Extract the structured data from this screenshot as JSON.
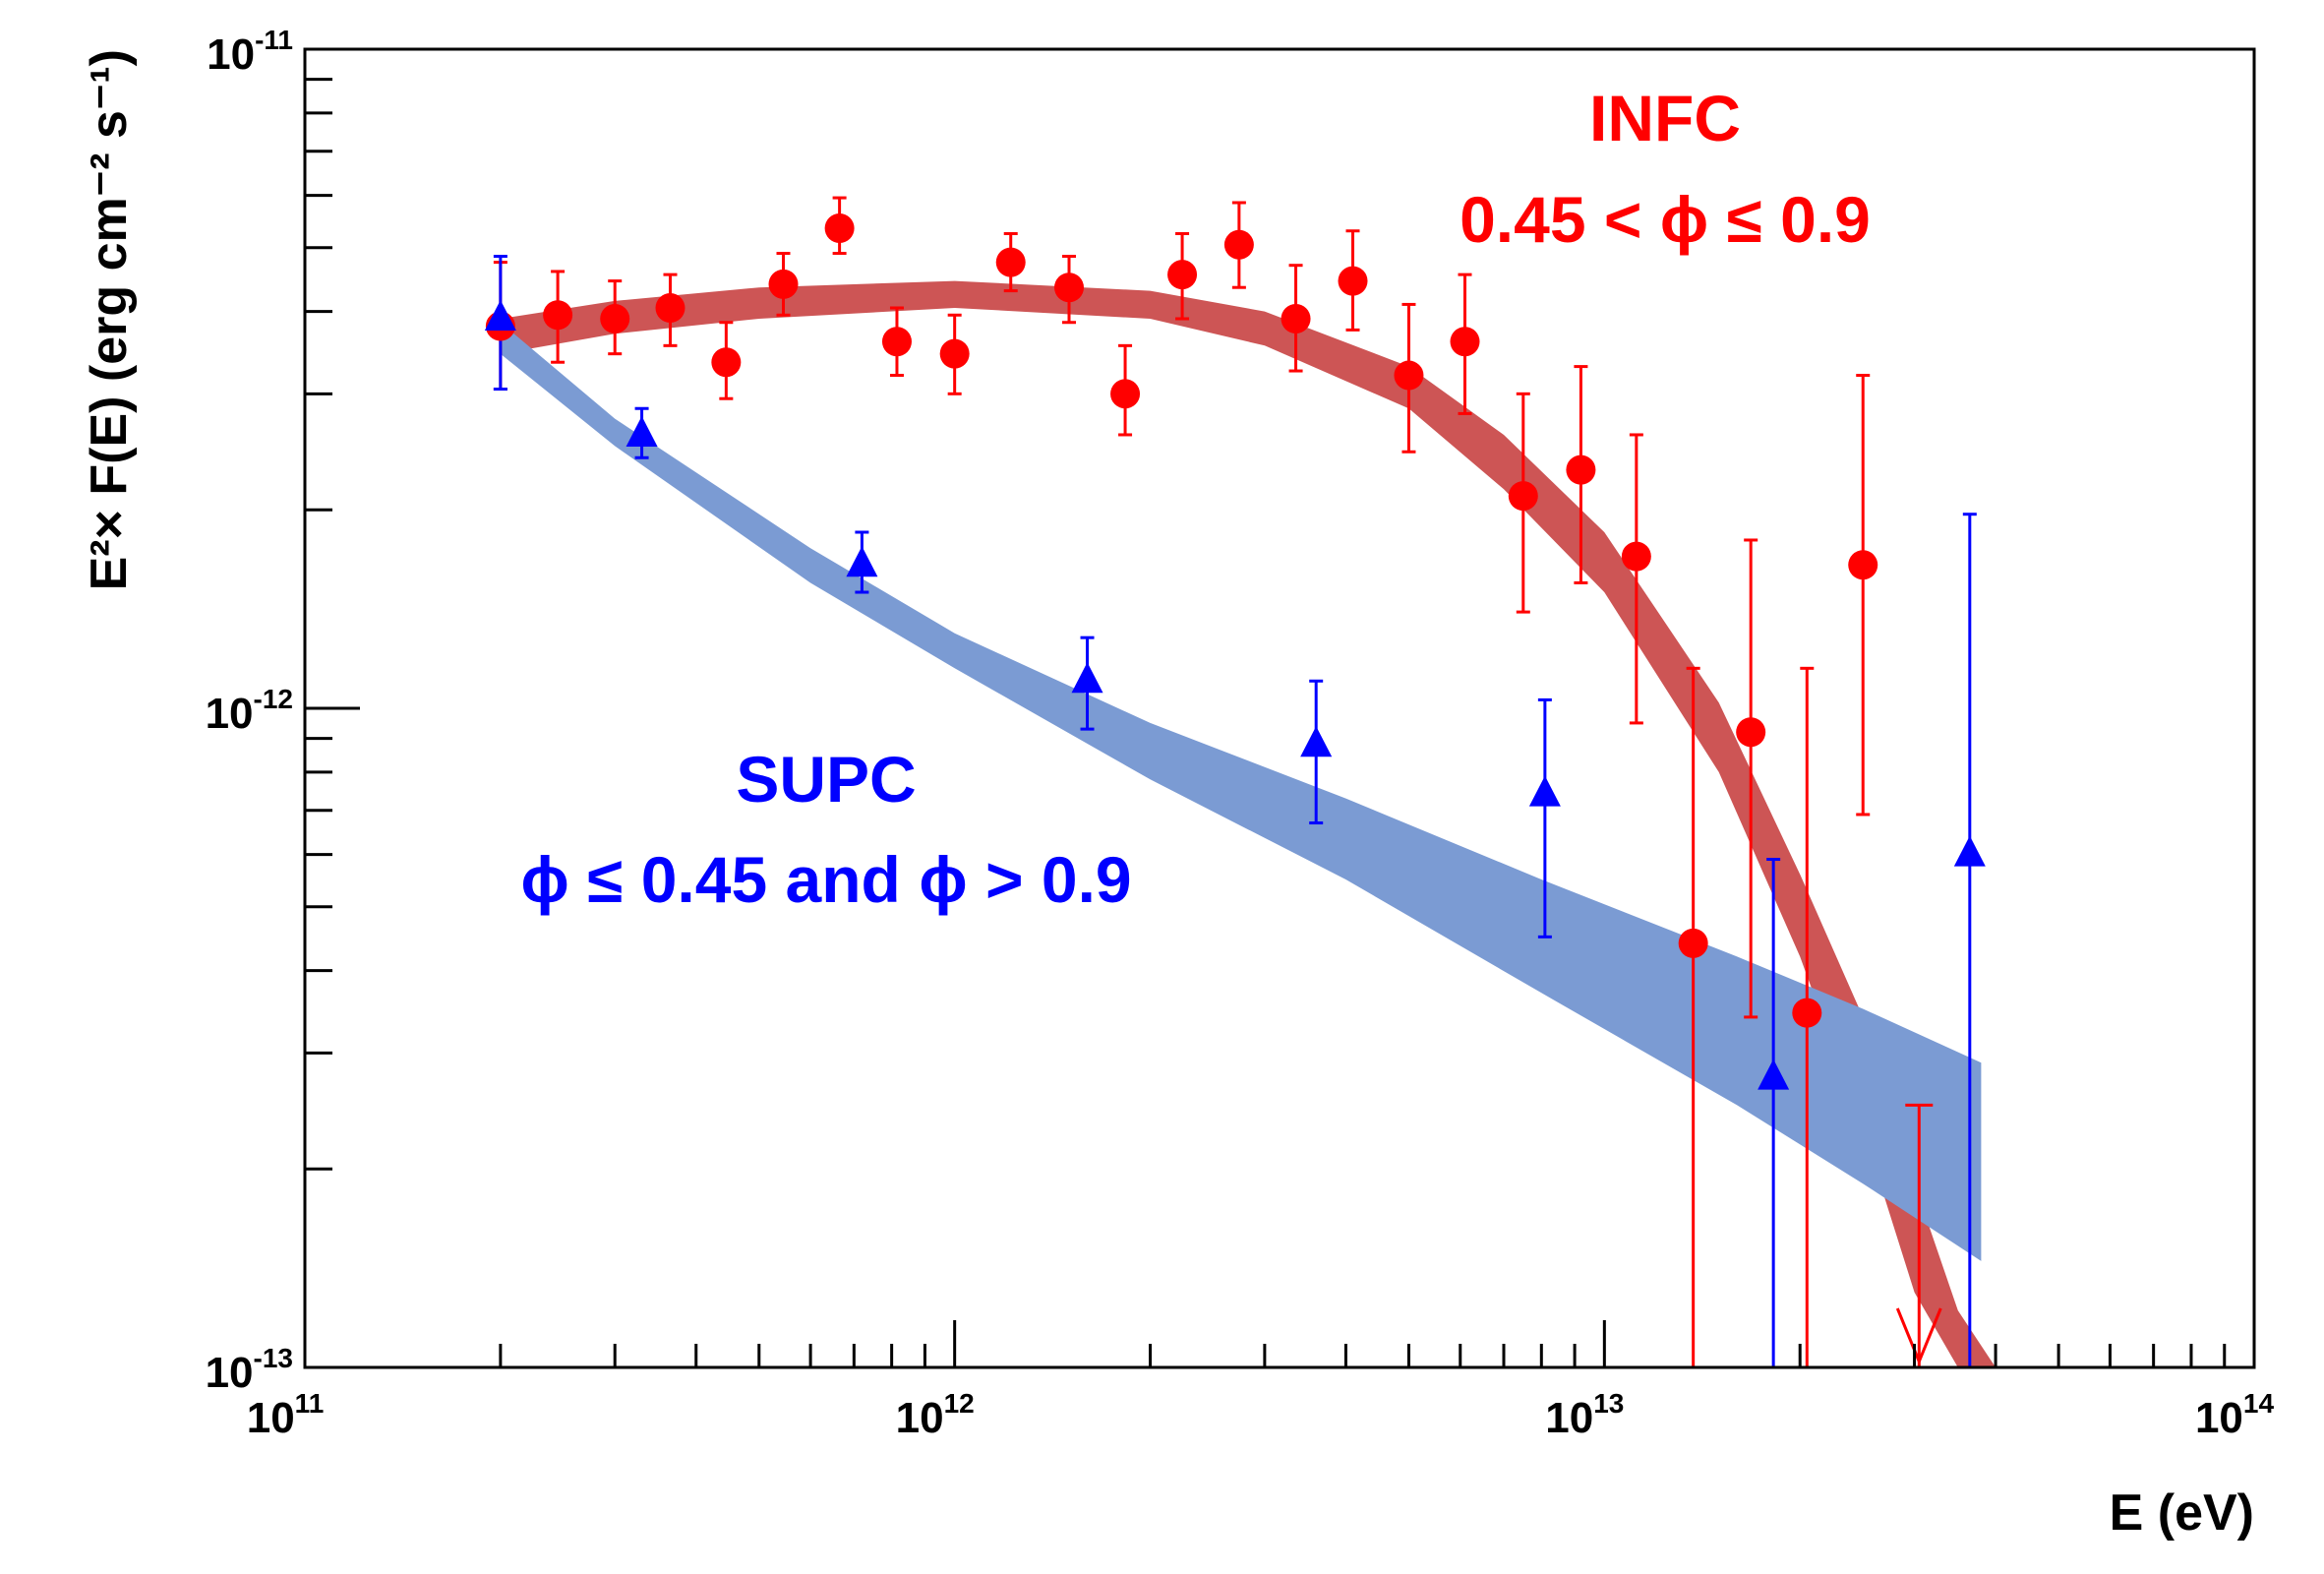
{
  "chart_data": {
    "type": "scatter",
    "title": "",
    "xlabel": "E (eV)",
    "ylabel": "E²× F(E) (erg cm⁻² s⁻¹)",
    "x_scale": "log",
    "y_scale": "log",
    "xlim": [
      100000000000.0,
      100000000000000.0
    ],
    "ylim": [
      1e-13,
      1e-11
    ],
    "x_ticks": [
      {
        "value": 100000000000.0,
        "base": "10",
        "exp": "11"
      },
      {
        "value": 1000000000000.0,
        "base": "10",
        "exp": "12"
      },
      {
        "value": 10000000000000.0,
        "base": "10",
        "exp": "13"
      },
      {
        "value": 100000000000000.0,
        "base": "10",
        "exp": "14"
      }
    ],
    "y_ticks": [
      {
        "value": 1e-13,
        "base": "10",
        "exp": "-13"
      },
      {
        "value": 1e-12,
        "base": "10",
        "exp": "-12"
      },
      {
        "value": 1e-11,
        "base": "10",
        "exp": "-11"
      }
    ],
    "grid": false,
    "legend": "none",
    "annotations": [
      {
        "lines": [
          "INFC",
          "0.45 < ϕ ≤ 0.9"
        ],
        "color": "#ff0000",
        "series": "INFC"
      },
      {
        "lines": [
          "SUPC",
          "ϕ ≤ 0.45 and ϕ > 0.9"
        ],
        "color": "#0000ff",
        "series": "SUPC"
      }
    ],
    "series": [
      {
        "name": "INFC",
        "marker": "circle",
        "color": "#ff0000",
        "band_color": "#cd5555",
        "band": {
          "x": [
            200000000000.0,
            300000000000.0,
            500000000000.0,
            1000000000000.0,
            2000000000000.0,
            3000000000000.0,
            5000000000000.0,
            7000000000000.0,
            10000000000000.0,
            15000000000000.0,
            20000000000000.0,
            25000000000000.0,
            30000000000000.0,
            35000000000000.0,
            40000000000000.0
          ],
          "upper": [
            3.9e-12,
            4.15e-12,
            4.35e-12,
            4.45e-12,
            4.3e-12,
            4e-12,
            3.3e-12,
            2.6e-12,
            1.85e-12,
            1.02e-12,
            5.6e-13,
            3.4e-13,
            1.9e-13,
            1.22e-13,
            1e-13
          ],
          "lower": [
            3.45e-12,
            3.7e-12,
            3.9e-12,
            4.05e-12,
            3.9e-12,
            3.55e-12,
            2.85e-12,
            2.15e-12,
            1.5e-12,
            8e-13,
            4.2e-13,
            2.3e-13,
            1.3e-13,
            1e-13,
            1e-13
          ]
        },
        "points": [
          {
            "x": 200000000000.0,
            "y": 3.8e-12,
            "ylo": 3.05e-12,
            "yhi": 4.75e-12
          },
          {
            "x": 245000000000.0,
            "y": 3.95e-12,
            "ylo": 3.35e-12,
            "yhi": 4.6e-12
          },
          {
            "x": 300000000000.0,
            "y": 3.9e-12,
            "ylo": 3.45e-12,
            "yhi": 4.45e-12
          },
          {
            "x": 365000000000.0,
            "y": 4.05e-12,
            "ylo": 3.55e-12,
            "yhi": 4.55e-12
          },
          {
            "x": 445000000000.0,
            "y": 3.35e-12,
            "ylo": 2.95e-12,
            "yhi": 3.85e-12
          },
          {
            "x": 545000000000.0,
            "y": 4.4e-12,
            "ylo": 3.95e-12,
            "yhi": 4.9e-12
          },
          {
            "x": 665000000000.0,
            "y": 5.35e-12,
            "ylo": 4.9e-12,
            "yhi": 5.95e-12
          },
          {
            "x": 815000000000.0,
            "y": 3.6e-12,
            "ylo": 3.2e-12,
            "yhi": 4.05e-12
          },
          {
            "x": 1000000000000.0,
            "y": 3.45e-12,
            "ylo": 3e-12,
            "yhi": 3.95e-12
          },
          {
            "x": 1220000000000.0,
            "y": 4.75e-12,
            "ylo": 4.3e-12,
            "yhi": 5.25e-12
          },
          {
            "x": 1500000000000.0,
            "y": 4.35e-12,
            "ylo": 3.85e-12,
            "yhi": 4.85e-12
          },
          {
            "x": 1830000000000.0,
            "y": 3e-12,
            "ylo": 2.6e-12,
            "yhi": 3.55e-12
          },
          {
            "x": 2240000000000.0,
            "y": 4.55e-12,
            "ylo": 3.9e-12,
            "yhi": 5.25e-12
          },
          {
            "x": 2740000000000.0,
            "y": 5.05e-12,
            "ylo": 4.35e-12,
            "yhi": 5.85e-12
          },
          {
            "x": 3350000000000.0,
            "y": 3.9e-12,
            "ylo": 3.25e-12,
            "yhi": 4.7e-12
          },
          {
            "x": 4100000000000.0,
            "y": 4.45e-12,
            "ylo": 3.75e-12,
            "yhi": 5.3e-12
          },
          {
            "x": 5000000000000.0,
            "y": 3.2e-12,
            "ylo": 2.45e-12,
            "yhi": 4.1e-12
          },
          {
            "x": 6100000000000.0,
            "y": 3.6e-12,
            "ylo": 2.8e-12,
            "yhi": 4.55e-12
          },
          {
            "x": 7500000000000.0,
            "y": 2.1e-12,
            "ylo": 1.4e-12,
            "yhi": 3e-12
          },
          {
            "x": 9200000000000.0,
            "y": 2.3e-12,
            "ylo": 1.55e-12,
            "yhi": 3.3e-12
          },
          {
            "x": 11200000000000.0,
            "y": 1.7e-12,
            "ylo": 9.5e-13,
            "yhi": 2.6e-12
          },
          {
            "x": 13700000000000.0,
            "y": 4.4e-13,
            "ylo": 1e-13,
            "yhi": 1.15e-12
          },
          {
            "x": 16800000000000.0,
            "y": 9.2e-13,
            "ylo": 3.4e-13,
            "yhi": 1.8e-12
          },
          {
            "x": 20500000000000.0,
            "y": 3.45e-13,
            "ylo": 1e-13,
            "yhi": 1.15e-12
          },
          {
            "x": 25000000000000.0,
            "y": 1.65e-12,
            "ylo": 6.9e-13,
            "yhi": 3.2e-12
          }
        ],
        "upper_limits": [
          {
            "x": 30500000000000.0,
            "y": 2.5e-13
          }
        ]
      },
      {
        "name": "SUPC",
        "marker": "triangle",
        "color": "#0000ff",
        "band_color": "#7b9bd3",
        "band": {
          "x": [
            200000000000.0,
            300000000000.0,
            600000000000.0,
            1000000000000.0,
            2000000000000.0,
            4000000000000.0,
            8000000000000.0,
            16000000000000.0,
            25000000000000.0,
            38000000000000.0
          ],
          "upper": [
            3.85e-12,
            2.75e-12,
            1.75e-12,
            1.3e-12,
            9.5e-13,
            7.3e-13,
            5.5e-13,
            4.2e-13,
            3.5e-13,
            2.9e-13
          ],
          "lower": [
            3.45e-12,
            2.5e-12,
            1.55e-12,
            1.15e-12,
            7.8e-13,
            5.5e-13,
            3.7e-13,
            2.5e-13,
            1.9e-13,
            1.45e-13
          ]
        },
        "points": [
          {
            "x": 200000000000.0,
            "y": 3.9e-12,
            "ylo": 3.05e-12,
            "yhi": 4.85e-12
          },
          {
            "x": 330000000000.0,
            "y": 2.6e-12,
            "ylo": 2.4e-12,
            "yhi": 2.85e-12
          },
          {
            "x": 720000000000.0,
            "y": 1.65e-12,
            "ylo": 1.5e-12,
            "yhi": 1.85e-12
          },
          {
            "x": 1600000000000.0,
            "y": 1.1e-12,
            "ylo": 9.3e-13,
            "yhi": 1.28e-12
          },
          {
            "x": 3600000000000.0,
            "y": 8.8e-13,
            "ylo": 6.7e-13,
            "yhi": 1.1e-12
          },
          {
            "x": 8100000000000.0,
            "y": 7.4e-13,
            "ylo": 4.5e-13,
            "yhi": 1.03e-12
          },
          {
            "x": 18200000000000.0,
            "y": 2.75e-13,
            "ylo": 1e-13,
            "yhi": 5.9e-13
          },
          {
            "x": 36500000000000.0,
            "y": 6e-13,
            "ylo": 1e-13,
            "yhi": 1.97e-12
          }
        ]
      }
    ]
  }
}
